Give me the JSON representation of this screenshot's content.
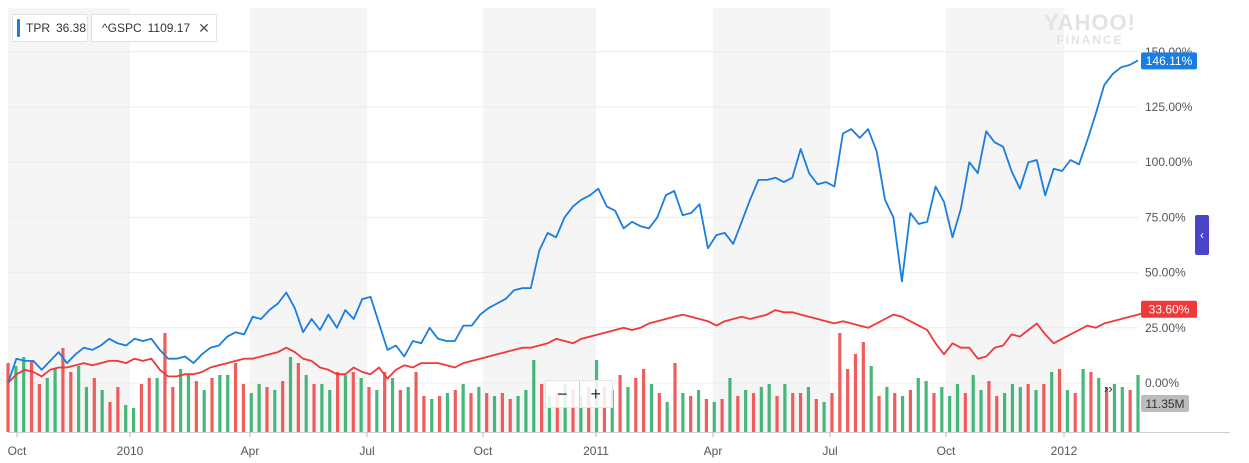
{
  "legend": [
    {
      "symbol": "TPR",
      "value": "36.38",
      "color": "#1a7de0"
    },
    {
      "symbol": "^GSPC",
      "value": "1109.17",
      "color": "#f0383a",
      "close": "✕"
    }
  ],
  "watermark": {
    "line1": "YAHOO!",
    "line2": "FINANCE"
  },
  "zoom": {
    "minus": "−",
    "plus": "+"
  },
  "more_label": "››",
  "side_tab_label": "‹",
  "chart_data": {
    "type": "line",
    "x_ticks": [
      "Oct",
      "2010",
      "Apr",
      "Jul",
      "Oct",
      "2011",
      "Apr",
      "Jul",
      "Oct",
      "2012"
    ],
    "y_ticks": [
      "0.00%",
      "25.00%",
      "50.00%",
      "75.00%",
      "100.00%",
      "125.00%",
      "150.00%"
    ],
    "ylim": [
      -10,
      160
    ],
    "series": [
      {
        "name": "TPR",
        "color": "#1a7de0",
        "last_label": "146.11%",
        "values": [
          0,
          11,
          10,
          10,
          6,
          10,
          14,
          9,
          13,
          16,
          15,
          17,
          20,
          18,
          17,
          20,
          19,
          20,
          15,
          11,
          11,
          12,
          9,
          13,
          16,
          17,
          21,
          23,
          22,
          30,
          29,
          33,
          36,
          41,
          34,
          23,
          29,
          24,
          31,
          25,
          33,
          29,
          38,
          39,
          27,
          15,
          17,
          12,
          19,
          18,
          25,
          20,
          19,
          19,
          26,
          26,
          31,
          34,
          36,
          38,
          42,
          43,
          43,
          60,
          68,
          66,
          75,
          80,
          83,
          85,
          88,
          80,
          78,
          70,
          73,
          71,
          70,
          75,
          85,
          87,
          76,
          77,
          81,
          61,
          67,
          68,
          63,
          73,
          83,
          92,
          92,
          93,
          91,
          93,
          106,
          95,
          90,
          91,
          89,
          113,
          115,
          111,
          115,
          105,
          83,
          75,
          46,
          77,
          72,
          73,
          89,
          82,
          66,
          79,
          100,
          95,
          114,
          109,
          107,
          96,
          88,
          100,
          101,
          85,
          97,
          96,
          101,
          99,
          110,
          122,
          135,
          140,
          143,
          144,
          146.11
        ]
      },
      {
        "name": "^GSPC",
        "color": "#f0383a",
        "last_label": "33.60%",
        "values": [
          0,
          4,
          6,
          5,
          3,
          6,
          7,
          7,
          8,
          9,
          8,
          9,
          10,
          10,
          9,
          11,
          10,
          11,
          6,
          3,
          3,
          4,
          4,
          5,
          7,
          8,
          9,
          10,
          11,
          11,
          12,
          13,
          14,
          16,
          14,
          11,
          10,
          7,
          6,
          4,
          4,
          7,
          5,
          4,
          7,
          2,
          6,
          8,
          7,
          9,
          9,
          9,
          8,
          7,
          9,
          10,
          11,
          12,
          13,
          14,
          15,
          16,
          16,
          17,
          18,
          20,
          19,
          18,
          20,
          21,
          22,
          23,
          24,
          25,
          24,
          25,
          27,
          28,
          29,
          30,
          31,
          30,
          29,
          28,
          26,
          28,
          29,
          30,
          29,
          30,
          31,
          33,
          32,
          32,
          31,
          30,
          29,
          28,
          27,
          28,
          27,
          26,
          25,
          27,
          29,
          31,
          30,
          28,
          26,
          24,
          18,
          13,
          18,
          16,
          16,
          11,
          12,
          16,
          17,
          22,
          21,
          24,
          27,
          22,
          18,
          20,
          22,
          24,
          26,
          25,
          27,
          28,
          29,
          30,
          31,
          32,
          33,
          33.6
        ]
      }
    ],
    "volume": {
      "label": "11.35M",
      "bars": [
        {
          "h": 2.3,
          "up": false
        },
        {
          "h": 2.2,
          "up": true
        },
        {
          "h": 2.5,
          "up": true
        },
        {
          "h": 2.4,
          "up": false
        },
        {
          "h": 1.6,
          "up": false
        },
        {
          "h": 1.8,
          "up": true
        },
        {
          "h": 2.1,
          "up": true
        },
        {
          "h": 2.8,
          "up": false
        },
        {
          "h": 2.0,
          "up": false
        },
        {
          "h": 2.2,
          "up": true
        },
        {
          "h": 1.5,
          "up": true
        },
        {
          "h": 1.8,
          "up": false
        },
        {
          "h": 1.4,
          "up": true
        },
        {
          "h": 1.0,
          "up": false
        },
        {
          "h": 1.5,
          "up": false
        },
        {
          "h": 0.9,
          "up": true
        },
        {
          "h": 0.8,
          "up": true
        },
        {
          "h": 1.6,
          "up": false
        },
        {
          "h": 1.8,
          "up": false
        },
        {
          "h": 1.8,
          "up": true
        },
        {
          "h": 3.3,
          "up": false
        },
        {
          "h": 1.5,
          "up": false
        },
        {
          "h": 2.1,
          "up": true
        },
        {
          "h": 1.9,
          "up": true
        },
        {
          "h": 1.7,
          "up": false
        },
        {
          "h": 1.4,
          "up": true
        },
        {
          "h": 1.8,
          "up": false
        },
        {
          "h": 1.9,
          "up": true
        },
        {
          "h": 1.9,
          "up": true
        },
        {
          "h": 2.3,
          "up": false
        },
        {
          "h": 1.6,
          "up": false
        },
        {
          "h": 1.3,
          "up": true
        },
        {
          "h": 1.6,
          "up": true
        },
        {
          "h": 1.5,
          "up": false
        },
        {
          "h": 1.4,
          "up": true
        },
        {
          "h": 1.7,
          "up": false
        },
        {
          "h": 2.5,
          "up": true
        },
        {
          "h": 2.3,
          "up": false
        },
        {
          "h": 1.9,
          "up": true
        },
        {
          "h": 1.6,
          "up": false
        },
        {
          "h": 1.6,
          "up": true
        },
        {
          "h": 1.4,
          "up": true
        },
        {
          "h": 2.0,
          "up": false
        },
        {
          "h": 1.9,
          "up": true
        },
        {
          "h": 2.0,
          "up": false
        },
        {
          "h": 1.8,
          "up": true
        },
        {
          "h": 1.5,
          "up": false
        },
        {
          "h": 1.4,
          "up": true
        },
        {
          "h": 2.0,
          "up": false
        },
        {
          "h": 1.8,
          "up": true
        },
        {
          "h": 1.4,
          "up": false
        },
        {
          "h": 1.5,
          "up": true
        },
        {
          "h": 2.0,
          "up": false
        },
        {
          "h": 1.2,
          "up": false
        },
        {
          "h": 1.1,
          "up": true
        },
        {
          "h": 1.2,
          "up": false
        },
        {
          "h": 1.3,
          "up": true
        },
        {
          "h": 1.4,
          "up": false
        },
        {
          "h": 1.6,
          "up": true
        },
        {
          "h": 1.3,
          "up": false
        },
        {
          "h": 1.5,
          "up": true
        },
        {
          "h": 1.3,
          "up": false
        },
        {
          "h": 1.2,
          "up": true
        },
        {
          "h": 1.3,
          "up": false
        },
        {
          "h": 1.1,
          "up": false
        },
        {
          "h": 1.2,
          "up": true
        },
        {
          "h": 1.4,
          "up": true
        },
        {
          "h": 2.4,
          "up": true
        },
        {
          "h": 1.6,
          "up": false
        },
        {
          "h": 1.2,
          "up": true
        },
        {
          "h": 1.3,
          "up": false
        },
        {
          "h": 1.6,
          "up": true
        },
        {
          "h": 1.4,
          "up": false
        },
        {
          "h": 1.2,
          "up": true
        },
        {
          "h": 1.5,
          "up": false
        },
        {
          "h": 2.4,
          "up": true
        },
        {
          "h": 1.5,
          "up": false
        },
        {
          "h": 1.4,
          "up": true
        },
        {
          "h": 1.9,
          "up": false
        },
        {
          "h": 1.5,
          "up": true
        },
        {
          "h": 1.8,
          "up": false
        },
        {
          "h": 2.1,
          "up": false
        },
        {
          "h": 1.6,
          "up": true
        },
        {
          "h": 1.3,
          "up": false
        },
        {
          "h": 1.0,
          "up": true
        },
        {
          "h": 2.3,
          "up": false
        },
        {
          "h": 1.3,
          "up": true
        },
        {
          "h": 1.2,
          "up": false
        },
        {
          "h": 1.4,
          "up": true
        },
        {
          "h": 1.1,
          "up": false
        },
        {
          "h": 1.0,
          "up": true
        },
        {
          "h": 1.1,
          "up": false
        },
        {
          "h": 1.8,
          "up": true
        },
        {
          "h": 1.2,
          "up": false
        },
        {
          "h": 1.4,
          "up": true
        },
        {
          "h": 1.3,
          "up": false
        },
        {
          "h": 1.5,
          "up": true
        },
        {
          "h": 1.6,
          "up": true
        },
        {
          "h": 1.2,
          "up": false
        },
        {
          "h": 1.6,
          "up": true
        },
        {
          "h": 1.3,
          "up": false
        },
        {
          "h": 1.3,
          "up": false
        },
        {
          "h": 1.5,
          "up": true
        },
        {
          "h": 1.1,
          "up": false
        },
        {
          "h": 1.0,
          "up": true
        },
        {
          "h": 1.3,
          "up": false
        },
        {
          "h": 3.3,
          "up": false
        },
        {
          "h": 2.1,
          "up": false
        },
        {
          "h": 2.6,
          "up": false
        },
        {
          "h": 3.0,
          "up": false
        },
        {
          "h": 2.2,
          "up": true
        },
        {
          "h": 1.2,
          "up": false
        },
        {
          "h": 1.5,
          "up": true
        },
        {
          "h": 1.3,
          "up": false
        },
        {
          "h": 1.2,
          "up": true
        },
        {
          "h": 1.4,
          "up": false
        },
        {
          "h": 1.8,
          "up": true
        },
        {
          "h": 1.7,
          "up": true
        },
        {
          "h": 1.3,
          "up": false
        },
        {
          "h": 1.5,
          "up": true
        },
        {
          "h": 1.2,
          "up": true
        },
        {
          "h": 1.6,
          "up": true
        },
        {
          "h": 1.3,
          "up": false
        },
        {
          "h": 1.9,
          "up": true
        },
        {
          "h": 1.4,
          "up": true
        },
        {
          "h": 1.7,
          "up": false
        },
        {
          "h": 1.2,
          "up": false
        },
        {
          "h": 1.3,
          "up": true
        },
        {
          "h": 1.6,
          "up": true
        },
        {
          "h": 1.5,
          "up": true
        },
        {
          "h": 1.6,
          "up": false
        },
        {
          "h": 1.4,
          "up": true
        },
        {
          "h": 1.6,
          "up": false
        },
        {
          "h": 2.0,
          "up": true
        },
        {
          "h": 2.1,
          "up": false
        },
        {
          "h": 1.4,
          "up": true
        },
        {
          "h": 1.3,
          "up": false
        },
        {
          "h": 2.1,
          "up": true
        },
        {
          "h": 2.0,
          "up": false
        },
        {
          "h": 1.8,
          "up": true
        },
        {
          "h": 1.5,
          "up": false
        },
        {
          "h": 1.6,
          "up": true
        },
        {
          "h": 1.5,
          "up": true
        },
        {
          "h": 1.4,
          "up": false
        },
        {
          "h": 1.9,
          "up": true
        }
      ]
    },
    "grid": true,
    "legend_position": "top-left"
  }
}
